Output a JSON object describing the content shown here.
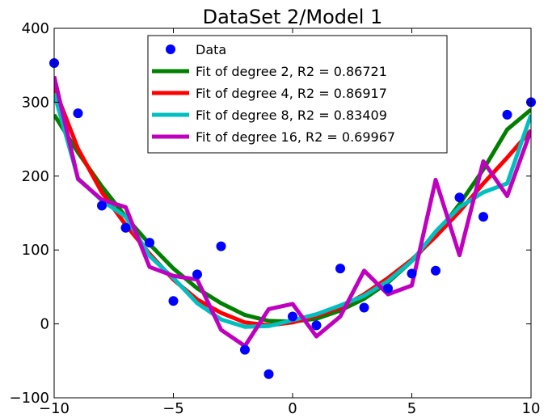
{
  "chart_data": {
    "type": "scatter",
    "title": "DataSet 2/Model 1",
    "xlabel": "",
    "ylabel": "",
    "xlim": [
      -10,
      10
    ],
    "ylim": [
      -100,
      400
    ],
    "xticks": [
      -10,
      -5,
      0,
      5,
      10
    ],
    "yticks": [
      -100,
      0,
      100,
      200,
      300,
      400
    ],
    "xtick_labels": [
      "−10",
      "−5",
      "0",
      "5",
      "10"
    ],
    "ytick_labels": [
      "−100",
      "0",
      "100",
      "200",
      "300",
      "400"
    ],
    "grid": false,
    "legend_position": "top-center",
    "data": {
      "name": "Data",
      "color": "#0000ff",
      "x": [
        -10,
        -9,
        -8,
        -7,
        -6,
        -5,
        -4,
        -3,
        -2,
        -1,
        0,
        1,
        2,
        3,
        4,
        5,
        6,
        7,
        8,
        9,
        10
      ],
      "y": [
        353,
        285,
        160,
        130,
        110,
        31,
        67,
        105,
        -35,
        -68,
        10,
        -2,
        75,
        22,
        48,
        68,
        72,
        171,
        145,
        283,
        300
      ]
    },
    "series": [
      {
        "name": "Fit of degree 2, R2 = 0.86721",
        "color": "#007f00",
        "x": [
          -10,
          -9,
          -8,
          -7,
          -6,
          -5,
          -4,
          -3,
          -2,
          -1,
          0,
          1,
          2,
          3,
          4,
          5,
          6,
          7,
          8,
          9,
          10
        ],
        "y": [
          283,
          232,
          186,
          145,
          108,
          75,
          48,
          28,
          12,
          4,
          3,
          7,
          18,
          34,
          56,
          85,
          120,
          162,
          209,
          263,
          290
        ]
      },
      {
        "name": "Fit of degree 4, R2 = 0.86917",
        "color": "#ff0000",
        "x": [
          -10,
          -9,
          -8,
          -7,
          -6,
          -5,
          -4,
          -3,
          -2,
          -1,
          0,
          1,
          2,
          3,
          4,
          5,
          6,
          7,
          8,
          9,
          10
        ],
        "y": [
          320,
          237,
          178,
          134,
          95,
          60,
          33,
          15,
          2,
          -2,
          2,
          11,
          22,
          40,
          62,
          87,
          118,
          152,
          190,
          225,
          262
        ]
      },
      {
        "name": "Fit of degree 8, R2 = 0.83409",
        "color": "#00bfbf",
        "x": [
          -10,
          -9,
          -8,
          -7,
          -6,
          -5,
          -4,
          -3,
          -2,
          -1,
          0,
          1,
          2,
          3,
          4,
          5,
          6,
          7,
          8,
          9,
          10
        ],
        "y": [
          312,
          197,
          167,
          145,
          92,
          62,
          28,
          6,
          -4,
          -3,
          5,
          13,
          25,
          38,
          58,
          85,
          125,
          158,
          178,
          190,
          283
        ]
      },
      {
        "name": "Fit of degree 16, R2 = 0.69967",
        "color": "#bf00bf",
        "x": [
          -10,
          -9,
          -8,
          -7,
          -6,
          -5,
          -4,
          -3,
          -2,
          -1,
          0,
          1,
          2,
          3,
          4,
          5,
          6,
          7,
          8,
          9,
          10
        ],
        "y": [
          335,
          196,
          168,
          158,
          77,
          65,
          60,
          -8,
          -30,
          20,
          27,
          -17,
          10,
          72,
          40,
          52,
          195,
          93,
          220,
          173,
          262
        ]
      }
    ]
  }
}
